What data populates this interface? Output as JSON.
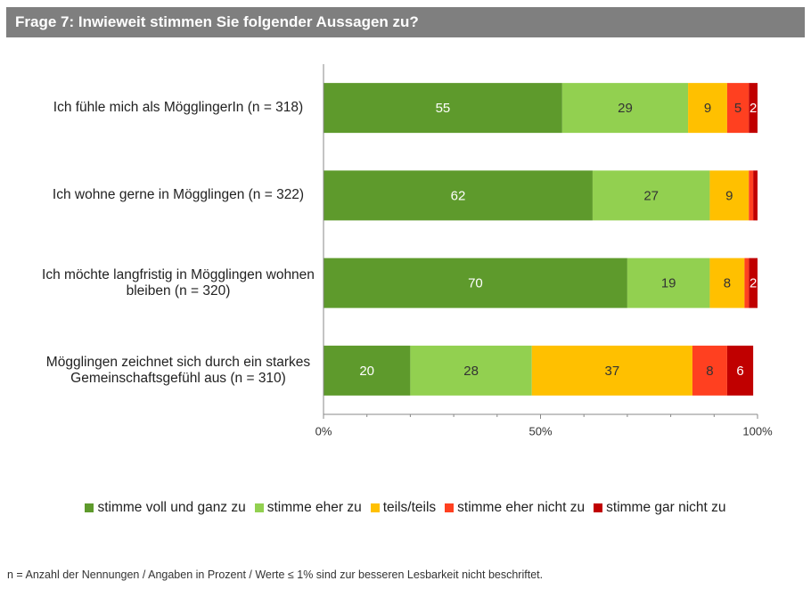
{
  "chart_data": {
    "type": "stacked_barh",
    "title": "Frage 7: Inwieweit stimmen Sie folgender Aussagen zu?",
    "categories": [
      "Ich fühle mich als MögglingerIn (n = 318)",
      "Ich wohne gerne in Mögglingen (n = 322)",
      "Ich möchte langfristig in Mögglingen wohnen bleiben (n = 320)",
      "Mögglingen zeichnet sich durch ein starkes Gemeinschaftsgefühl aus (n = 310)"
    ],
    "series": [
      {
        "name": "stimme voll und ganz zu",
        "color": "#5e9a2c",
        "label_color": "#ffffff",
        "values": [
          55,
          62,
          70,
          20
        ]
      },
      {
        "name": "stimme eher zu",
        "color": "#92d050",
        "label_color": "#333333",
        "values": [
          29,
          27,
          19,
          28
        ]
      },
      {
        "name": "teils/teils",
        "color": "#ffc000",
        "label_color": "#333333",
        "values": [
          9,
          9,
          8,
          37
        ]
      },
      {
        "name": "stimme eher nicht zu",
        "color": "#ff4020",
        "label_color": "#333333",
        "values": [
          5,
          1,
          1,
          8
        ],
        "value_labels": [
          "5",
          null,
          null,
          "8"
        ]
      },
      {
        "name": "stimme gar nicht zu",
        "color": "#c00000",
        "label_color": "#ffffff",
        "values": [
          2,
          1,
          2,
          6
        ],
        "value_labels": [
          "2",
          null,
          "2",
          "6"
        ]
      }
    ],
    "xlim": [
      0,
      100
    ],
    "xticks": [
      {
        "value": 0,
        "label": "0%"
      },
      {
        "value": 50,
        "label": "50%"
      },
      {
        "value": 100,
        "label": "100%"
      }
    ],
    "xminorticks": [
      10,
      20,
      30,
      40,
      60,
      70,
      80,
      90
    ],
    "legend": "bottom",
    "note": "n = Anzahl der Nennungen  /  Angaben in Prozent  /  Werte ≤ 1% sind zur besseren Lesbarkeit nicht beschriftet."
  }
}
